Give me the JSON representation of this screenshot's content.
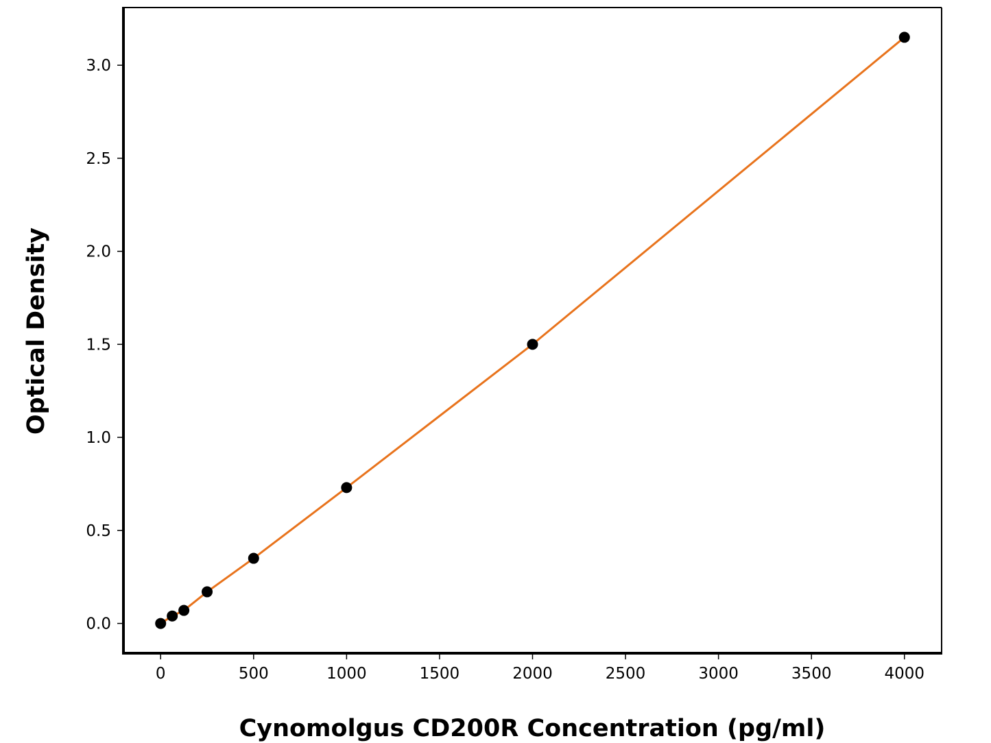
{
  "chart_data": {
    "type": "line",
    "x_label": "Cynomolgus CD200R Concentration (pg/ml)",
    "y_label": "Optical Density",
    "x": [
      0,
      62.5,
      125,
      250,
      500,
      1000,
      2000,
      4000
    ],
    "series": [
      {
        "values": [
          0.0,
          0.04,
          0.07,
          0.17,
          0.35,
          0.73,
          1.5,
          3.15
        ],
        "line_color": "#e8731c",
        "marker_color": "#000000"
      }
    ],
    "xlim": [
      -200,
      4200
    ],
    "ylim": [
      -0.16,
      3.31
    ],
    "xticks": [
      0,
      500,
      1000,
      1500,
      2000,
      2500,
      3000,
      3500,
      4000
    ],
    "yticks": [
      {
        "value": 0,
        "label": "0.0"
      },
      0.5,
      {
        "value": 1,
        "label": "1.0"
      },
      1.5,
      {
        "value": 2,
        "label": "2.0"
      },
      2.5,
      {
        "value": 3,
        "label": "3.0"
      }
    ],
    "grid": false
  }
}
